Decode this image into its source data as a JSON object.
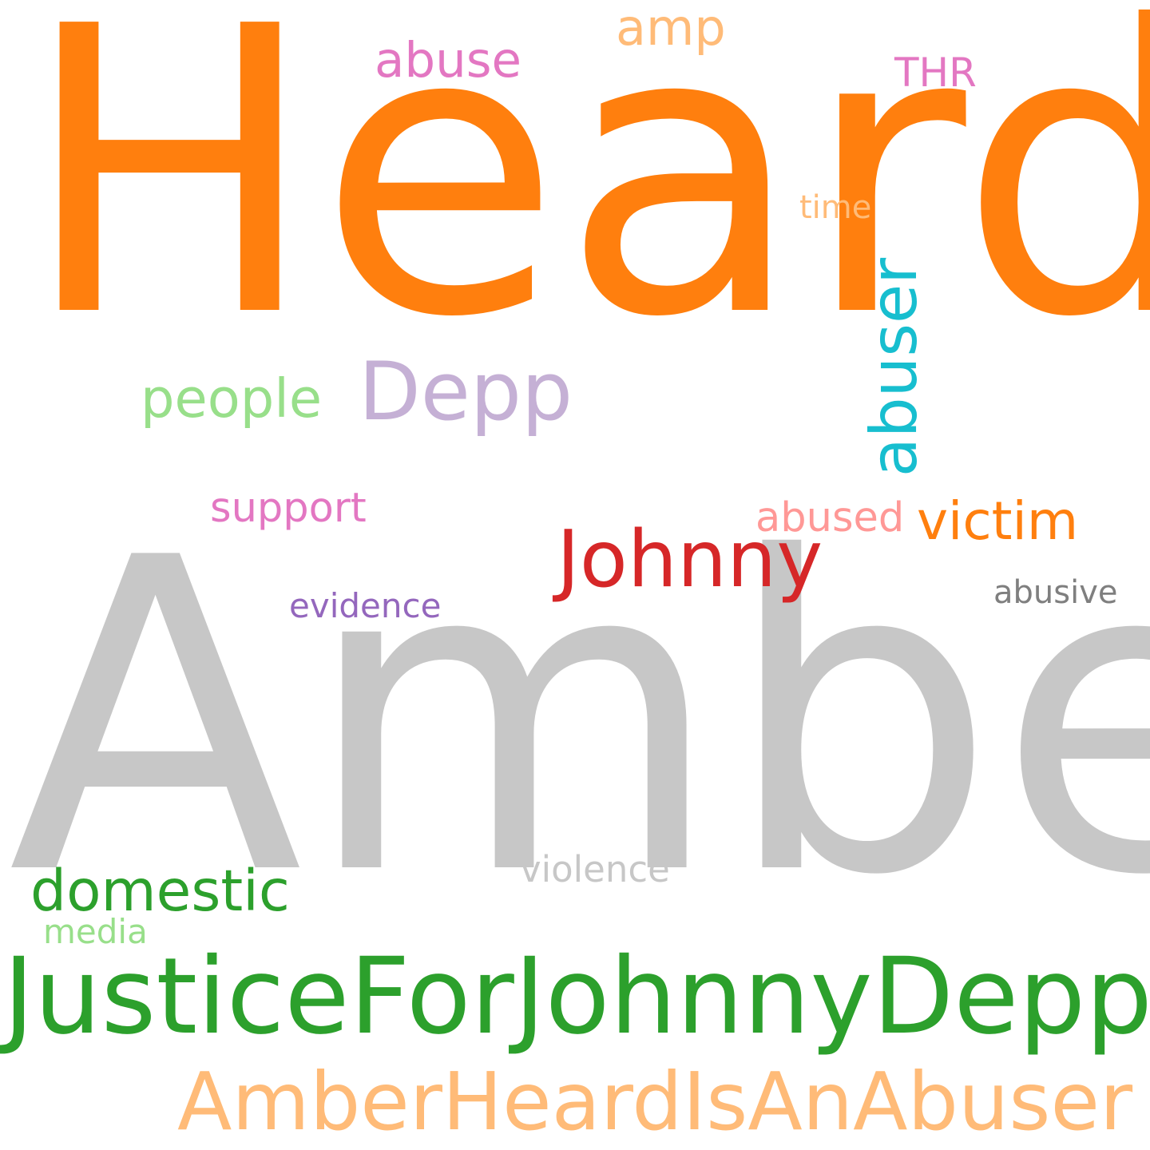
{
  "words": [
    {
      "id": "heard",
      "text": "Heard",
      "color": "#ff7f0e"
    },
    {
      "id": "amber",
      "text": "Amber",
      "color": "#c7c7c7"
    },
    {
      "id": "justicefor-johnnydepp",
      "text": "JusticeForJohnnyDepp",
      "color": "#2ca02c"
    },
    {
      "id": "amberheardisanabuser",
      "text": "AmberHeardIsAnAbuser",
      "color": "#ffbb78"
    },
    {
      "id": "abuser",
      "text": "abuser",
      "color": "#17becf"
    },
    {
      "id": "depp",
      "text": "Depp",
      "color": "#c5b0d5"
    },
    {
      "id": "johnny",
      "text": "Johnny",
      "color": "#d62728"
    },
    {
      "id": "domestic",
      "text": "domestic",
      "color": "#2ca02c"
    },
    {
      "id": "victim",
      "text": "victim",
      "color": "#ff7f0e"
    },
    {
      "id": "people",
      "text": "people",
      "color": "#98df8a"
    },
    {
      "id": "abuse",
      "text": "abuse",
      "color": "#e377c2"
    },
    {
      "id": "amp",
      "text": "amp",
      "color": "#ffbb78"
    },
    {
      "id": "support",
      "text": "support",
      "color": "#e377c2"
    },
    {
      "id": "abused",
      "text": "abused",
      "color": "#ff9896"
    },
    {
      "id": "violence",
      "text": "violence",
      "color": "#c7c7c7"
    },
    {
      "id": "evidence",
      "text": "evidence",
      "color": "#9467bd"
    },
    {
      "id": "abusive",
      "text": "abusive",
      "color": "#7f7f7f"
    },
    {
      "id": "thr",
      "text": "THR",
      "color": "#e377c2"
    },
    {
      "id": "media",
      "text": "media",
      "color": "#98df8a"
    },
    {
      "id": "time",
      "text": "time",
      "color": "#ffbb78"
    }
  ]
}
